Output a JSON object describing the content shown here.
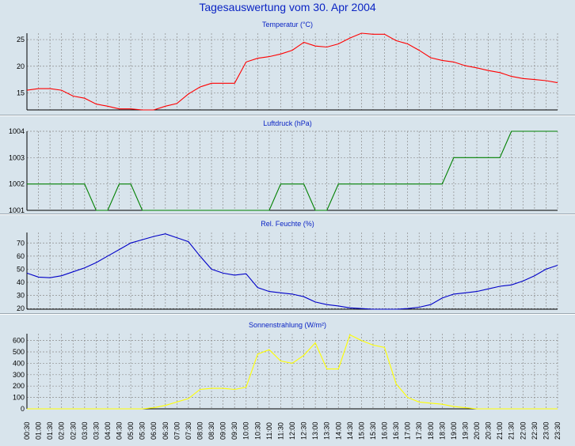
{
  "title": "Tagesauswertung vom 30. Apr 2004",
  "colors": {
    "title": "#0b24c4",
    "panel_title": "#0b24c4",
    "grid": "#8c8c8c",
    "background": "#d8e4ec"
  },
  "time_labels": [
    "00:30",
    "01:00",
    "01:30",
    "02:00",
    "02:30",
    "03:00",
    "03:30",
    "04:00",
    "04:30",
    "05:00",
    "05:30",
    "06:00",
    "06:30",
    "07:00",
    "07:30",
    "08:00",
    "08:30",
    "09:00",
    "09:30",
    "10:00",
    "10:30",
    "11:00",
    "11:30",
    "12:00",
    "12:30",
    "13:00",
    "13:30",
    "14:00",
    "14:30",
    "15:00",
    "15:30",
    "16:00",
    "16:30",
    "17:00",
    "17:30",
    "18:00",
    "18:30",
    "19:00",
    "19:30",
    "20:00",
    "20:30",
    "21:00",
    "21:30",
    "22:00",
    "22:30",
    "23:00",
    "23:30"
  ],
  "chart_data": [
    {
      "type": "line",
      "title": "Temperatur (°C)",
      "color": "#ff0000",
      "yticks": [
        15,
        20,
        25
      ],
      "ylim": [
        11.8,
        26.2
      ],
      "x": [
        "00:30",
        "01:00",
        "01:30",
        "02:00",
        "02:30",
        "03:00",
        "03:30",
        "04:00",
        "04:30",
        "05:00",
        "05:30",
        "06:00",
        "06:30",
        "07:00",
        "07:30",
        "08:00",
        "08:30",
        "09:00",
        "09:30",
        "10:00",
        "10:30",
        "11:00",
        "11:30",
        "12:00",
        "12:30",
        "13:00",
        "13:30",
        "14:00",
        "14:30",
        "15:00",
        "15:30",
        "16:00",
        "16:30",
        "17:00",
        "17:30",
        "18:00",
        "18:30",
        "19:00",
        "19:30",
        "20:00",
        "20:30",
        "21:00",
        "21:30",
        "22:00",
        "22:30",
        "23:00",
        "23:30"
      ],
      "values": [
        15.5,
        15.8,
        15.8,
        15.5,
        14.4,
        14.0,
        12.9,
        12.5,
        12.0,
        12.0,
        11.8,
        11.8,
        12.5,
        13.0,
        14.8,
        16.1,
        16.8,
        16.8,
        16.8,
        20.8,
        21.5,
        21.8,
        22.3,
        23.0,
        24.5,
        23.8,
        23.6,
        24.2,
        25.3,
        26.2,
        26.0,
        26.0,
        24.8,
        24.2,
        23.0,
        21.6,
        21.1,
        20.8,
        20.1,
        19.7,
        19.2,
        18.8,
        18.1,
        17.7,
        17.5,
        17.3,
        16.9
      ]
    },
    {
      "type": "line",
      "title": "Luftdruck (hPa)",
      "color": "#008000",
      "yticks": [
        1001,
        1002,
        1003,
        1004
      ],
      "ylim": [
        1001,
        1004
      ],
      "x": [
        "00:30",
        "01:00",
        "01:30",
        "02:00",
        "02:30",
        "03:00",
        "03:30",
        "04:00",
        "04:30",
        "05:00",
        "05:30",
        "06:00",
        "06:30",
        "07:00",
        "07:30",
        "08:00",
        "08:30",
        "09:00",
        "09:30",
        "10:00",
        "10:30",
        "11:00",
        "11:30",
        "12:00",
        "12:30",
        "13:00",
        "13:30",
        "14:00",
        "14:30",
        "15:00",
        "15:30",
        "16:00",
        "16:30",
        "17:00",
        "17:30",
        "18:00",
        "18:30",
        "19:00",
        "19:30",
        "20:00",
        "20:30",
        "21:00",
        "21:30",
        "22:00",
        "22:30",
        "23:00",
        "23:30"
      ],
      "values": [
        1002,
        1002,
        1002,
        1002,
        1002,
        1002,
        1001,
        1001,
        1002,
        1002,
        1001,
        1001,
        1001,
        1001,
        1001,
        1001,
        1001,
        1001,
        1001,
        1001,
        1001,
        1001,
        1002,
        1002,
        1002,
        1001,
        1001,
        1002,
        1002,
        1002,
        1002,
        1002,
        1002,
        1002,
        1002,
        1002,
        1002,
        1003,
        1003,
        1003,
        1003,
        1003,
        1004,
        1004,
        1004,
        1004,
        1004
      ]
    },
    {
      "type": "line",
      "title": "Rel. Feuchte (%)",
      "color": "#0000c8",
      "yticks": [
        20,
        30,
        40,
        50,
        60,
        70
      ],
      "ylim": [
        19.5,
        78
      ],
      "x": [
        "00:30",
        "01:00",
        "01:30",
        "02:00",
        "02:30",
        "03:00",
        "03:30",
        "04:00",
        "04:30",
        "05:00",
        "05:30",
        "06:00",
        "06:30",
        "07:00",
        "07:30",
        "08:00",
        "08:30",
        "09:00",
        "09:30",
        "10:00",
        "10:30",
        "11:00",
        "11:30",
        "12:00",
        "12:30",
        "13:00",
        "13:30",
        "14:00",
        "14:30",
        "15:00",
        "15:30",
        "16:00",
        "16:30",
        "17:00",
        "17:30",
        "18:00",
        "18:30",
        "19:00",
        "19:30",
        "20:00",
        "20:30",
        "21:00",
        "21:30",
        "22:00",
        "22:30",
        "23:00",
        "23:30"
      ],
      "values": [
        47,
        44,
        43.5,
        45,
        48,
        51,
        55,
        60,
        65,
        70,
        72.5,
        75,
        77,
        74,
        71,
        60,
        50,
        47,
        45.5,
        46.5,
        36,
        33,
        32,
        31,
        29,
        25,
        23,
        22,
        20.5,
        20,
        19.5,
        19.5,
        19.5,
        20,
        21,
        23,
        28,
        31,
        32,
        33,
        35,
        37,
        38,
        41,
        45,
        50,
        53
      ]
    },
    {
      "type": "line",
      "title": "Sonnenstrahlung (W/m²)",
      "color": "#ffff00",
      "yticks": [
        0,
        100,
        200,
        300,
        400,
        500,
        600
      ],
      "ylim": [
        0,
        660
      ],
      "x": [
        "00:30",
        "01:00",
        "01:30",
        "02:00",
        "02:30",
        "03:00",
        "03:30",
        "04:00",
        "04:30",
        "05:00",
        "05:30",
        "06:00",
        "06:30",
        "07:00",
        "07:30",
        "08:00",
        "08:30",
        "09:00",
        "09:30",
        "10:00",
        "10:30",
        "11:00",
        "11:30",
        "12:00",
        "12:30",
        "13:00",
        "13:30",
        "14:00",
        "14:30",
        "15:00",
        "15:30",
        "16:00",
        "16:30",
        "17:00",
        "17:30",
        "18:00",
        "18:30",
        "19:00",
        "19:30",
        "20:00",
        "20:30",
        "21:00",
        "21:30",
        "22:00",
        "22:30",
        "23:00",
        "23:30"
      ],
      "values": [
        0,
        0,
        0,
        0,
        0,
        0,
        0,
        0,
        0,
        0,
        0,
        10,
        30,
        60,
        90,
        170,
        180,
        180,
        170,
        190,
        480,
        520,
        420,
        400,
        470,
        580,
        350,
        350,
        650,
        600,
        560,
        540,
        220,
        100,
        60,
        50,
        40,
        20,
        10,
        0,
        0,
        0,
        0,
        0,
        0,
        0,
        0
      ]
    }
  ]
}
